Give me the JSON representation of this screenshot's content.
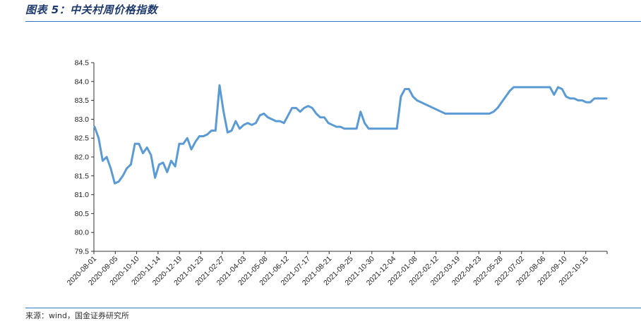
{
  "figure": {
    "title": "图表 5：中关村周价格指数",
    "source": "来源：wind，国金证券研究所"
  },
  "chart_data": {
    "type": "line",
    "title": "",
    "xlabel": "",
    "ylabel": "",
    "ylim": [
      79.5,
      84.5
    ],
    "y_ticks": [
      "79.5",
      "80.0",
      "80.5",
      "81.0",
      "81.5",
      "82.0",
      "82.5",
      "83.0",
      "83.5",
      "84.0",
      "84.5"
    ],
    "x_tick_labels": [
      "2020-08-01",
      "2020-09-05",
      "2020-10-10",
      "2020-11-14",
      "2020-12-19",
      "2021-01-23",
      "2021-02-27",
      "2021-04-03",
      "2021-05-08",
      "2021-06-12",
      "2021-07-17",
      "2021-08-21",
      "2021-09-25",
      "2021-10-30",
      "2021-12-04",
      "2022-01-08",
      "2022-02-12",
      "2022-03-19",
      "2022-04-23",
      "2022-05-28",
      "2022-07-02",
      "2022-08-06",
      "2022-09-10",
      "2022-10-15"
    ],
    "grid": false,
    "legend": "none",
    "line_color": "#5b9bd5",
    "series": [
      {
        "name": "",
        "values": [
          82.8,
          82.5,
          81.9,
          82.0,
          81.7,
          81.3,
          81.35,
          81.5,
          81.7,
          81.8,
          82.35,
          82.35,
          82.1,
          82.25,
          82.05,
          81.45,
          81.8,
          81.85,
          81.6,
          81.9,
          81.75,
          82.35,
          82.35,
          82.5,
          82.2,
          82.4,
          82.55,
          82.55,
          82.6,
          82.7,
          82.7,
          83.9,
          83.2,
          82.65,
          82.7,
          82.95,
          82.75,
          82.85,
          82.9,
          82.85,
          82.9,
          83.1,
          83.15,
          83.05,
          83.0,
          82.95,
          82.95,
          82.9,
          83.1,
          83.3,
          83.3,
          83.2,
          83.3,
          83.35,
          83.3,
          83.15,
          83.05,
          83.05,
          82.9,
          82.85,
          82.8,
          82.8,
          82.75,
          82.75,
          82.75,
          82.75,
          83.2,
          82.9,
          82.75,
          82.75,
          82.75,
          82.75,
          82.75,
          82.75,
          82.75,
          82.75,
          83.6,
          83.8,
          83.8,
          83.6,
          83.5,
          83.45,
          83.4,
          83.35,
          83.3,
          83.25,
          83.2,
          83.15,
          83.15,
          83.15,
          83.15,
          83.15,
          83.15,
          83.15,
          83.15,
          83.15,
          83.15,
          83.15,
          83.15,
          83.2,
          83.3,
          83.45,
          83.6,
          83.75,
          83.85,
          83.85,
          83.85,
          83.85,
          83.85,
          83.85,
          83.85,
          83.85,
          83.85,
          83.85,
          83.65,
          83.85,
          83.8,
          83.6,
          83.55,
          83.55,
          83.5,
          83.5,
          83.45,
          83.45,
          83.55,
          83.55,
          83.55,
          83.55
        ]
      }
    ]
  }
}
